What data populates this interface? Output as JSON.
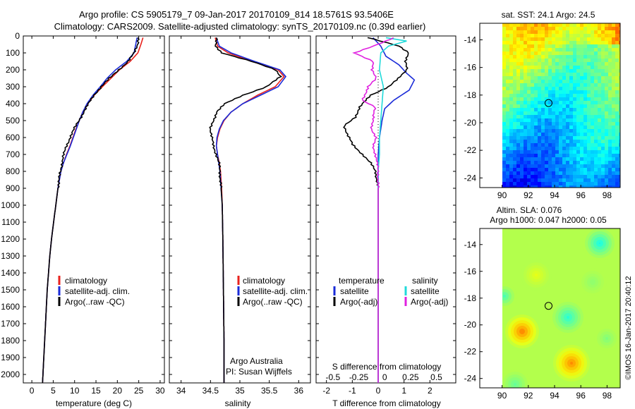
{
  "header": {
    "title_line1": "Argo profile: CS 5905179_7 09-Jan-2017 20170109_814 18.5761S 93.5406E",
    "title_line2": "Climatology: CARS2009. Satellite-adjusted climatology: synTS_20170109.nc (0.39d earlier)"
  },
  "colors": {
    "climatology": "#e8221d",
    "satellite": "#1a2bd8",
    "argo": "#000000",
    "argo_adj_s": "#e020e0",
    "sat_s": "#20dada"
  },
  "depth_axis": {
    "range": [
      0,
      2050
    ],
    "ticks": [
      "0",
      "100",
      "200",
      "300",
      "400",
      "500",
      "600",
      "700",
      "800",
      "900",
      "1000",
      "1100",
      "1200",
      "1300",
      "1400",
      "1500",
      "1600",
      "1700",
      "1800",
      "1900",
      "2000"
    ]
  },
  "chart_data": [
    {
      "id": "temperature",
      "type": "line",
      "xlabel": "temperature (deg C)",
      "xlim": [
        -2,
        31
      ],
      "xticks": [
        "0",
        "5",
        "10",
        "15",
        "20",
        "25",
        "30"
      ],
      "ylim": [
        0,
        2050
      ],
      "legend": {
        "placement": "bottom-left",
        "entries": [
          "climatology",
          "satellite-adj. clim.",
          "Argo(..raw -QC)"
        ]
      },
      "series": [
        {
          "name": "climatology",
          "color": "#e8221d",
          "points": [
            [
              26,
              10
            ],
            [
              25.5,
              50
            ],
            [
              24.8,
              100
            ],
            [
              23,
              150
            ],
            [
              20.5,
              200
            ],
            [
              18.5,
              250
            ],
            [
              16.5,
              300
            ],
            [
              14.6,
              350
            ],
            [
              13.1,
              400
            ],
            [
              11.9,
              450
            ],
            [
              11.1,
              500
            ],
            [
              10.3,
              550
            ],
            [
              9.6,
              600
            ],
            [
              8.9,
              650
            ],
            [
              8.1,
              700
            ],
            [
              7.4,
              750
            ],
            [
              6.8,
              800
            ],
            [
              6.1,
              900
            ],
            [
              5.6,
              1000
            ],
            [
              5.1,
              1100
            ],
            [
              4.6,
              1200
            ],
            [
              4.2,
              1300
            ],
            [
              3.9,
              1400
            ],
            [
              3.6,
              1500
            ],
            [
              3.4,
              1600
            ],
            [
              3.2,
              1700
            ],
            [
              3.0,
              1800
            ],
            [
              2.8,
              1900
            ],
            [
              2.6,
              2000
            ],
            [
              2.5,
              2050
            ]
          ]
        },
        {
          "name": "satellite-adj. clim.",
          "color": "#1a2bd8",
          "points": [
            [
              24.6,
              10
            ],
            [
              24.3,
              50
            ],
            [
              23.9,
              100
            ],
            [
              22.2,
              150
            ],
            [
              19.6,
              200
            ],
            [
              17.6,
              250
            ],
            [
              16,
              300
            ],
            [
              14.3,
              350
            ],
            [
              12.9,
              400
            ],
            [
              11.9,
              450
            ],
            [
              11.1,
              500
            ],
            [
              10.4,
              550
            ],
            [
              9.7,
              600
            ],
            [
              9,
              650
            ],
            [
              8.2,
              700
            ],
            [
              7.4,
              750
            ],
            [
              6.8,
              800
            ],
            [
              6.1,
              900
            ],
            [
              5.6,
              1000
            ],
            [
              5.1,
              1100
            ],
            [
              4.6,
              1200
            ],
            [
              4.2,
              1300
            ],
            [
              3.9,
              1400
            ],
            [
              3.6,
              1500
            ],
            [
              3.4,
              1600
            ],
            [
              3.2,
              1700
            ],
            [
              3,
              1800
            ],
            [
              2.8,
              1900
            ],
            [
              2.6,
              2000
            ],
            [
              2.5,
              2050
            ]
          ]
        },
        {
          "name": "Argo(..raw -QC)",
          "color": "#000000",
          "points": [
            [
              24.8,
              10
            ],
            [
              24.7,
              50
            ],
            [
              24,
              100
            ],
            [
              22.5,
              150
            ],
            [
              20.3,
              200
            ],
            [
              18.2,
              250
            ],
            [
              16.2,
              300
            ],
            [
              14.5,
              350
            ],
            [
              13.3,
              400
            ],
            [
              12.1,
              450
            ],
            [
              11,
              500
            ],
            [
              9.9,
              550
            ],
            [
              8.9,
              600
            ],
            [
              8.1,
              650
            ],
            [
              7.5,
              700
            ],
            [
              7,
              750
            ],
            [
              6.7,
              800
            ],
            [
              6.1,
              900
            ],
            [
              5.6,
              1000
            ],
            [
              5.1,
              1100
            ],
            [
              4.6,
              1200
            ],
            [
              4.2,
              1300
            ],
            [
              3.9,
              1400
            ],
            [
              3.6,
              1500
            ],
            [
              3.4,
              1600
            ],
            [
              3.2,
              1700
            ],
            [
              3,
              1800
            ],
            [
              2.8,
              1900
            ],
            [
              2.6,
              2000
            ],
            [
              2.5,
              2050
            ]
          ]
        }
      ]
    },
    {
      "id": "salinity",
      "type": "line",
      "xlabel": "salinity",
      "xlim": [
        33.8,
        36.2
      ],
      "xticks": [
        "34",
        "34.5",
        "35",
        "35.5",
        "36"
      ],
      "ylim": [
        0,
        2050
      ],
      "legend": {
        "placement": "bottom-center",
        "entries": [
          "climatology",
          "satellite-adj. clim.",
          "Argo(..raw -QC)"
        ]
      },
      "annotation_line1": "Argo Australia",
      "annotation_line2": "PI: Susan Wijffels",
      "series": [
        {
          "name": "climatology",
          "color": "#e8221d",
          "points": [
            [
              34.58,
              10
            ],
            [
              34.62,
              60
            ],
            [
              34.8,
              100
            ],
            [
              35.2,
              150
            ],
            [
              35.65,
              200
            ],
            [
              35.75,
              240
            ],
            [
              35.6,
              300
            ],
            [
              35.3,
              350
            ],
            [
              35.05,
              400
            ],
            [
              34.85,
              450
            ],
            [
              34.73,
              500
            ],
            [
              34.66,
              550
            ],
            [
              34.62,
              600
            ],
            [
              34.6,
              650
            ],
            [
              34.62,
              700
            ],
            [
              34.65,
              750
            ],
            [
              34.67,
              800
            ],
            [
              34.69,
              900
            ],
            [
              34.7,
              1000
            ],
            [
              34.71,
              1200
            ],
            [
              34.72,
              1500
            ],
            [
              34.73,
              1800
            ],
            [
              34.73,
              2050
            ]
          ]
        },
        {
          "name": "satellite-adj. clim.",
          "color": "#1a2bd8",
          "points": [
            [
              34.6,
              10
            ],
            [
              34.65,
              60
            ],
            [
              34.85,
              100
            ],
            [
              35.25,
              150
            ],
            [
              35.68,
              200
            ],
            [
              35.78,
              240
            ],
            [
              35.65,
              300
            ],
            [
              35.35,
              350
            ],
            [
              35.05,
              400
            ],
            [
              34.85,
              450
            ],
            [
              34.72,
              500
            ],
            [
              34.65,
              550
            ],
            [
              34.61,
              600
            ],
            [
              34.6,
              650
            ],
            [
              34.62,
              700
            ],
            [
              34.64,
              750
            ],
            [
              34.66,
              800
            ],
            [
              34.68,
              900
            ],
            [
              34.7,
              1000
            ],
            [
              34.71,
              1200
            ],
            [
              34.72,
              1500
            ],
            [
              34.73,
              1800
            ],
            [
              34.73,
              2050
            ]
          ]
        },
        {
          "name": "Argo(..raw -QC)",
          "color": "#000000",
          "points": [
            [
              34.6,
              10
            ],
            [
              34.58,
              60
            ],
            [
              34.7,
              100
            ],
            [
              35.2,
              150
            ],
            [
              35.6,
              200
            ],
            [
              35.7,
              240
            ],
            [
              35.45,
              300
            ],
            [
              35.05,
              350
            ],
            [
              34.75,
              400
            ],
            [
              34.6,
              450
            ],
            [
              34.55,
              500
            ],
            [
              34.5,
              550
            ],
            [
              34.52,
              600
            ],
            [
              34.55,
              650
            ],
            [
              34.6,
              700
            ],
            [
              34.64,
              750
            ],
            [
              34.66,
              800
            ],
            [
              34.68,
              900
            ],
            [
              34.7,
              1000
            ],
            [
              34.71,
              1200
            ],
            [
              34.72,
              1500
            ],
            [
              34.73,
              1800
            ],
            [
              34.73,
              2050
            ]
          ]
        }
      ]
    },
    {
      "id": "differences",
      "type": "line",
      "xlabel": "T difference from climatology",
      "xlim": [
        -2.4,
        3
      ],
      "xticks": [
        "-2",
        "-1",
        "0",
        "1",
        "2"
      ],
      "s_axis_label": "S difference from climatology",
      "s_ticks": [
        {
          "label": "-0.5",
          "t": -1.75
        },
        {
          "label": "-0.25",
          "t": -0.75
        },
        {
          "label": "0",
          "t": 0.25
        },
        {
          "label": "0.25",
          "t": 1.25
        },
        {
          "label": "0.5",
          "t": 2.25
        }
      ],
      "ylim": [
        0,
        2050
      ],
      "legend": {
        "placement": "bottom-center",
        "temperature_heading": "temperature",
        "salinity_heading": "salinity",
        "entries": [
          "satellite",
          "Argo(-adj)",
          "satellite",
          "Argo(-adj)"
        ]
      },
      "series": [
        {
          "name": "T satellite",
          "color": "#1a2bd8",
          "points": [
            [
              -0.2,
              10
            ],
            [
              0.1,
              60
            ],
            [
              0.3,
              120
            ],
            [
              0.8,
              170
            ],
            [
              1.1,
              220
            ],
            [
              1.4,
              260
            ],
            [
              1.2,
              320
            ],
            [
              0.6,
              380
            ],
            [
              0.25,
              430
            ],
            [
              0.15,
              500
            ],
            [
              0.05,
              600
            ],
            [
              0,
              700
            ],
            [
              0,
              900
            ],
            [
              0,
              2050
            ]
          ]
        },
        {
          "name": "T Argo(-adj)",
          "color": "#000000",
          "points": [
            [
              -0.4,
              10
            ],
            [
              0.8,
              60
            ],
            [
              1.2,
              100
            ],
            [
              1.05,
              150
            ],
            [
              1.1,
              200
            ],
            [
              0.8,
              250
            ],
            [
              0.4,
              300
            ],
            [
              -0.3,
              350
            ],
            [
              -0.7,
              420
            ],
            [
              -0.9,
              480
            ],
            [
              -1.3,
              530
            ],
            [
              -1.2,
              580
            ],
            [
              -1.0,
              640
            ],
            [
              -0.6,
              700
            ],
            [
              -0.3,
              750
            ],
            [
              -0.1,
              800
            ],
            [
              0,
              900
            ],
            [
              0,
              2050
            ]
          ]
        },
        {
          "name": "S satellite",
          "color": "#20dada",
          "points": [
            [
              0.3,
              10
            ],
            [
              1.1,
              30
            ],
            [
              0.4,
              60
            ],
            [
              0.1,
              100
            ],
            [
              0.05,
              200
            ],
            [
              0.2,
              300
            ],
            [
              0.15,
              400
            ],
            [
              0.1,
              500
            ],
            [
              0.05,
              600
            ],
            [
              0.05,
              700
            ],
            [
              0,
              800
            ],
            [
              0,
              2050
            ]
          ]
        },
        {
          "name": "S Argo(-adj)",
          "color": "#e020e0",
          "points": [
            [
              0.6,
              10
            ],
            [
              -0.2,
              60
            ],
            [
              -0.9,
              100
            ],
            [
              -0.2,
              150
            ],
            [
              -0.25,
              200
            ],
            [
              -0.05,
              250
            ],
            [
              -0.4,
              300
            ],
            [
              -0.6,
              380
            ],
            [
              -0.1,
              420
            ],
            [
              -0.2,
              460
            ],
            [
              -0.2,
              500
            ],
            [
              -0.25,
              550
            ],
            [
              -0.1,
              600
            ],
            [
              -0.2,
              650
            ],
            [
              -0.1,
              700
            ],
            [
              0,
              800
            ],
            [
              0,
              2050
            ]
          ]
        }
      ]
    },
    {
      "id": "sst_map",
      "type": "heatmap",
      "title": "sat. SST: 24.1 Argo: 24.5",
      "xticks": [
        "90",
        "92",
        "94",
        "96",
        "98"
      ],
      "yticks": [
        "-14",
        "-16",
        "-18",
        "-20",
        "-22",
        "-24"
      ],
      "xlim": [
        88.3,
        99
      ],
      "ylim": [
        -24.7,
        -12.8
      ],
      "argo_position": {
        "lon": 93.5406,
        "lat": -18.5761
      }
    },
    {
      "id": "sla_map",
      "type": "heatmap",
      "title_line1": "Altim. SLA: 0.076",
      "title_line2": "Argo h1000: 0.047 h2000: 0.05",
      "xticks": [
        "90",
        "92",
        "94",
        "96",
        "98"
      ],
      "yticks": [
        "-14",
        "-16",
        "-18",
        "-20",
        "-22",
        "-24"
      ],
      "xlim": [
        88.3,
        99
      ],
      "ylim": [
        -24.7,
        -12.8
      ],
      "argo_position": {
        "lon": 93.5406,
        "lat": -18.5761
      }
    }
  ],
  "footer": {
    "credit": "©IMOS 16-Jan-2017 20:40:12"
  }
}
